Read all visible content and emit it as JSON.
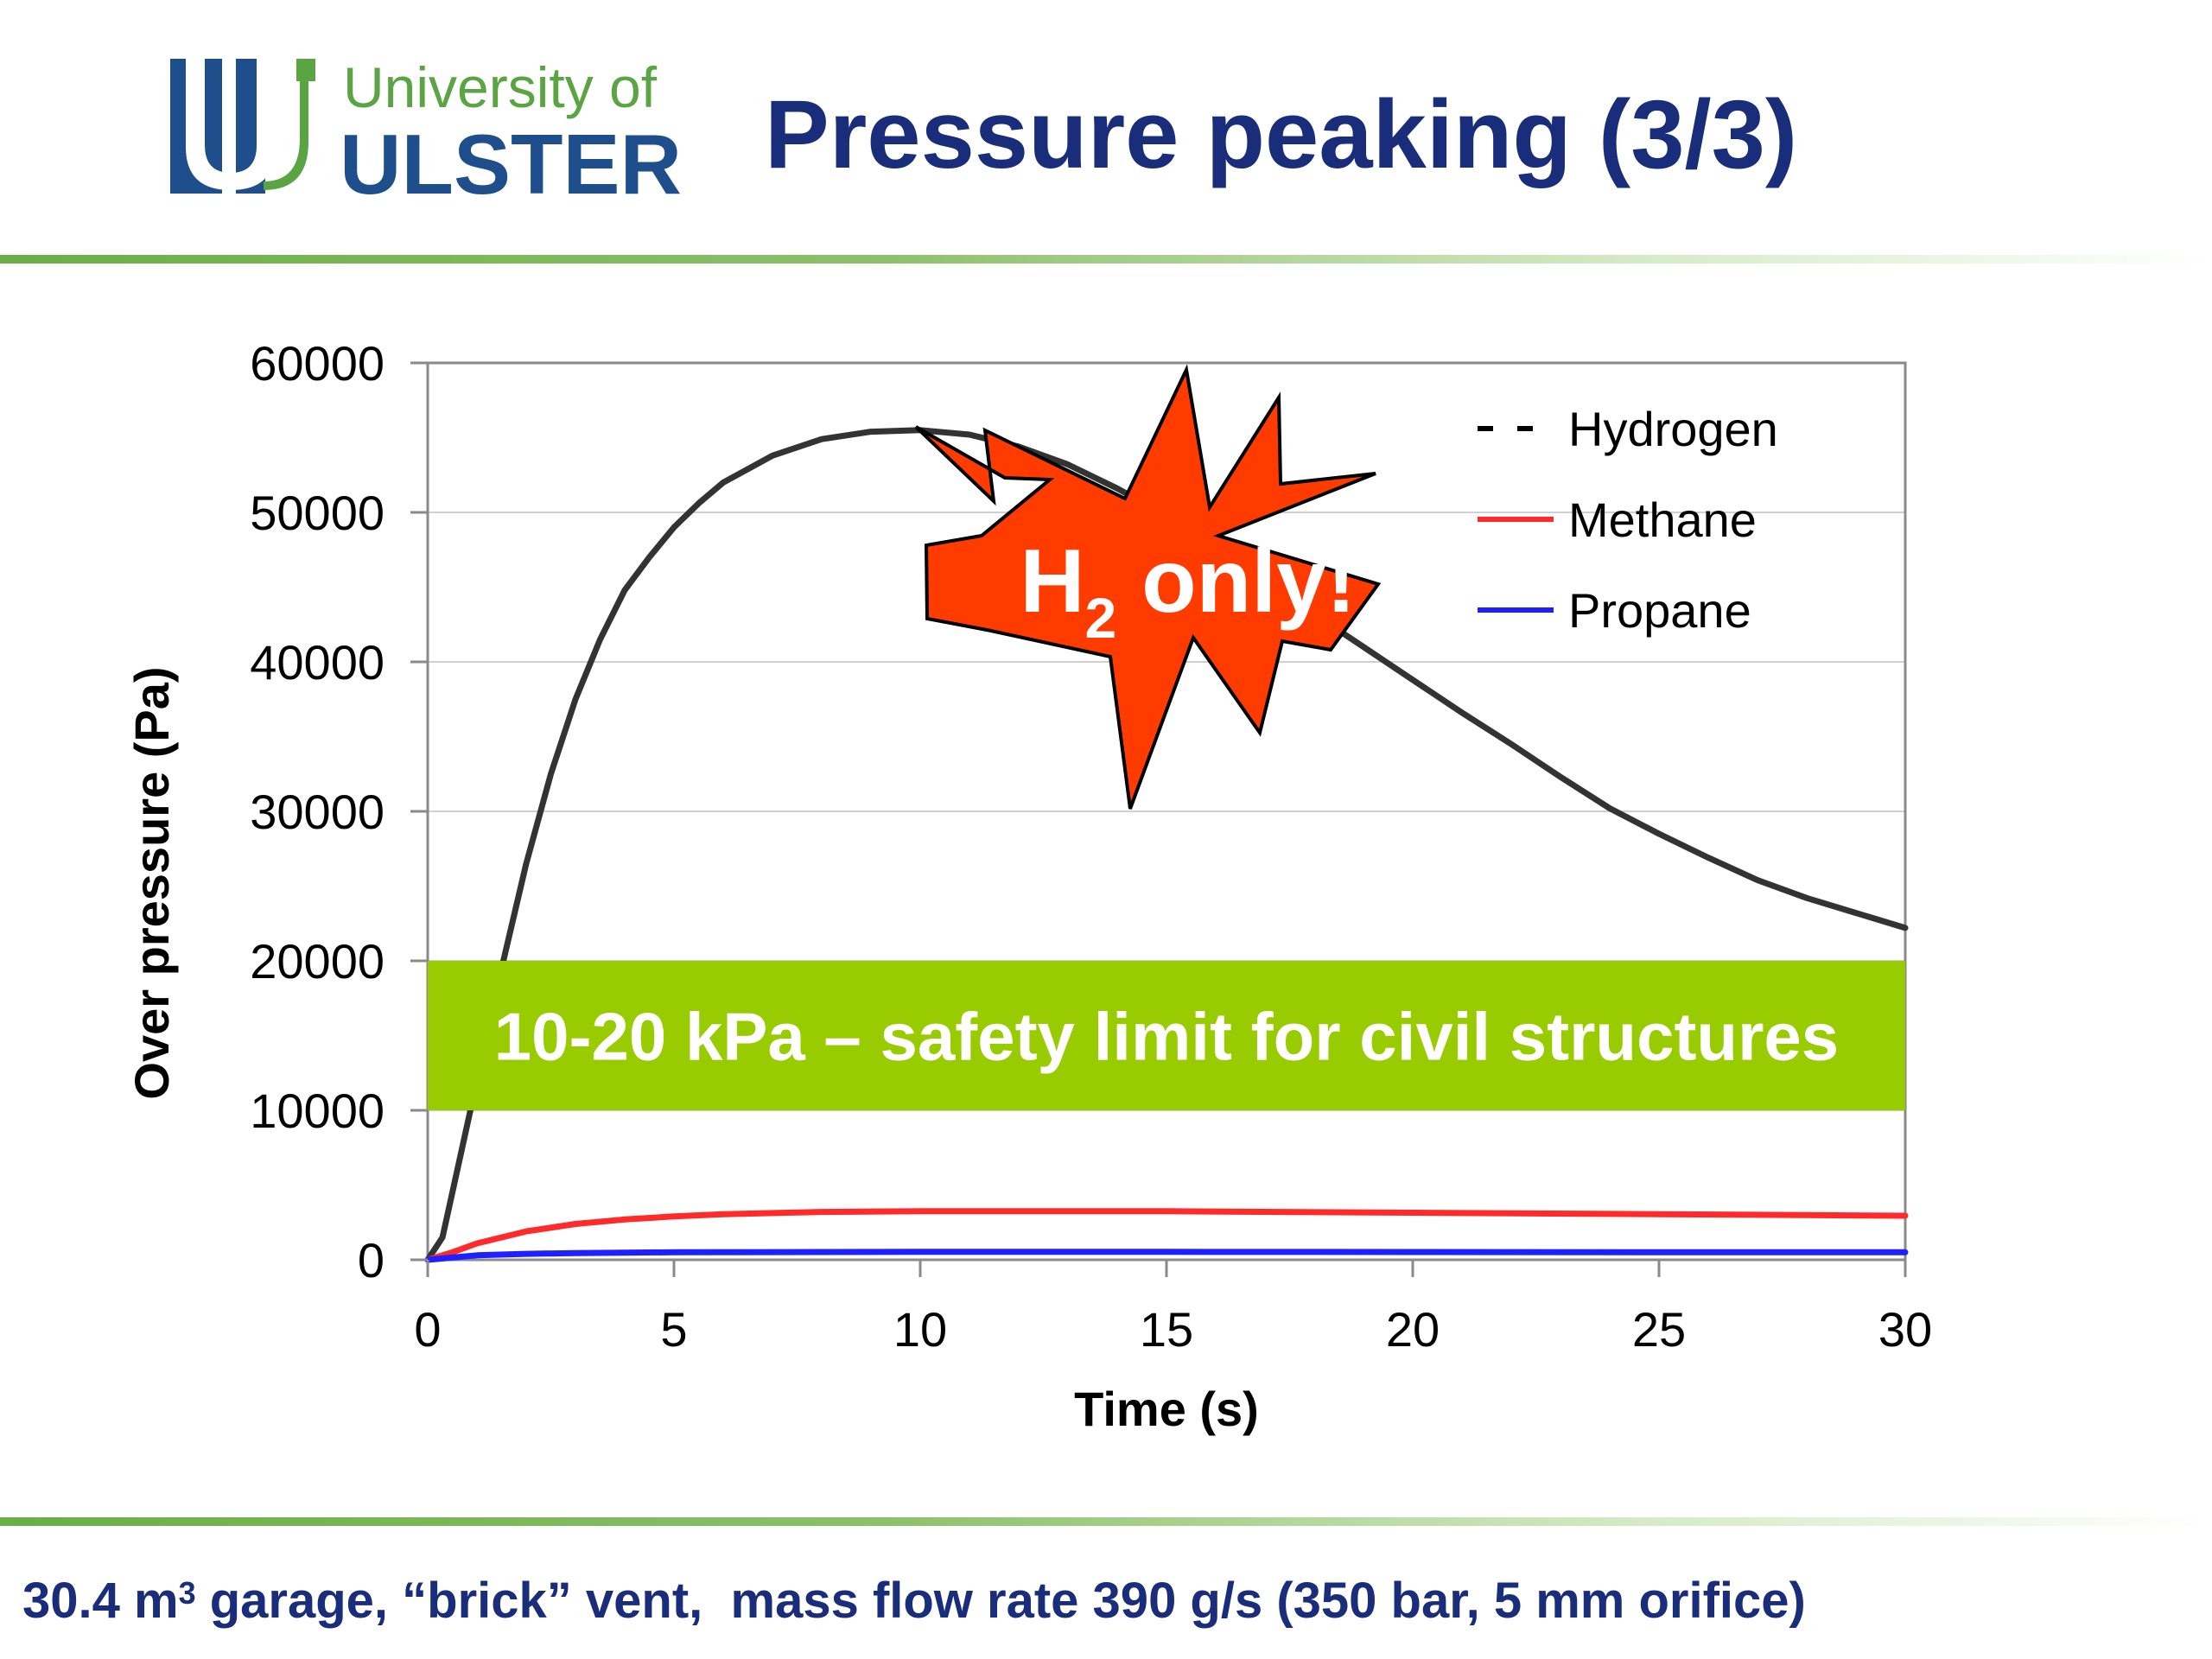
{
  "header": {
    "title": "Pressure peaking (3/3)",
    "logo": {
      "line1": "University of",
      "line2": "ULSTER",
      "colors": {
        "navy": "#1f4e8c",
        "green": "#5aa443"
      }
    }
  },
  "chart_data": {
    "type": "line",
    "title": "",
    "xlabel": "Time (s)",
    "ylabel": "Over pressure (Pa)",
    "xlim": [
      0,
      30
    ],
    "ylim": [
      0,
      60000
    ],
    "xticks": [
      0,
      5,
      10,
      15,
      20,
      25,
      30
    ],
    "yticks": [
      0,
      10000,
      20000,
      30000,
      40000,
      50000,
      60000
    ],
    "grid": "horizontal",
    "legend_position": "top-right",
    "series": [
      {
        "name": "Hydrogen",
        "color": "#333333",
        "legend_style": "dashed",
        "x": [
          0,
          0.3,
          0.5,
          1,
          1.5,
          2,
          2.5,
          3,
          3.5,
          4,
          4.5,
          5,
          5.5,
          6,
          7,
          8,
          9,
          10,
          11,
          12,
          13,
          14,
          15,
          16,
          17,
          18,
          19,
          20,
          21,
          22,
          23,
          24,
          25,
          26,
          27,
          28,
          29,
          30
        ],
        "values": [
          0,
          1500,
          4500,
          12000,
          19500,
          26500,
          32500,
          37500,
          41500,
          44800,
          47000,
          49000,
          50600,
          52000,
          53800,
          54900,
          55400,
          55500,
          55200,
          54400,
          53200,
          51600,
          49800,
          47600,
          45500,
          43200,
          41000,
          38800,
          36600,
          34500,
          32300,
          30200,
          28500,
          26900,
          25400,
          24200,
          23200,
          22200
        ]
      },
      {
        "name": "Methane",
        "color": "#ff2a2a",
        "legend_style": "solid",
        "x": [
          0,
          0.5,
          1,
          2,
          3,
          4,
          5,
          6,
          8,
          10,
          15,
          20,
          25,
          30
        ],
        "values": [
          0,
          500,
          1100,
          1900,
          2400,
          2700,
          2900,
          3050,
          3200,
          3250,
          3250,
          3150,
          3050,
          2950
        ]
      },
      {
        "name": "Propane",
        "color": "#1f1fff",
        "legend_style": "solid",
        "x": [
          0,
          0.5,
          1,
          2,
          3,
          5,
          8,
          10,
          15,
          20,
          25,
          30
        ],
        "values": [
          0,
          150,
          300,
          400,
          450,
          500,
          520,
          530,
          530,
          520,
          510,
          500
        ]
      }
    ],
    "annotations": {
      "burst": {
        "text": "H",
        "subscript": "2",
        "suffix": " only!",
        "fill": "#ff3b00",
        "text_color": "#ffffff"
      },
      "band": {
        "text": "10-20 kPa – safety limit for civil structures",
        "from": 10000,
        "to": 20000,
        "fill": "#99cc00",
        "text_color": "#ffffff"
      }
    }
  },
  "caption": {
    "part1": "30.4 m",
    "superscript": "3",
    "part2": " garage, “brick” vent,  mass flow rate 390 g/s (350 bar, 5 mm orifice)"
  }
}
